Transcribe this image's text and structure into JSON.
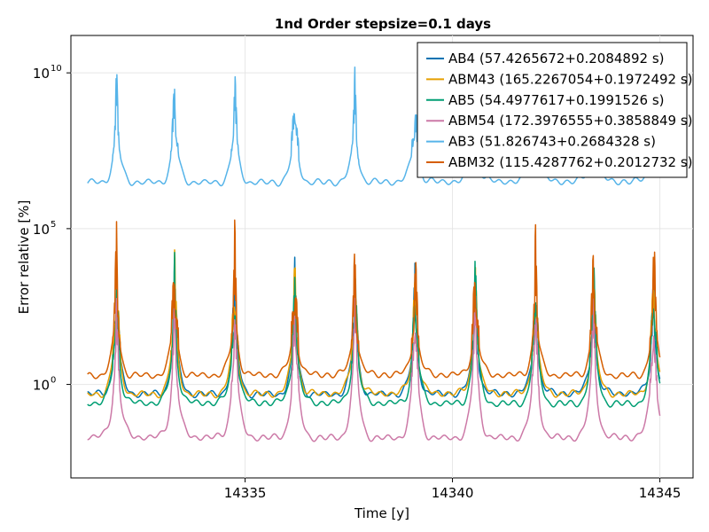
{
  "chart_data": {
    "type": "line",
    "title": "1nd Order stepsize=0.1 days",
    "xlabel": "Time [y]",
    "ylabel": "Error relative [%]",
    "xlim": [
      14330.8,
      14345.8
    ],
    "ylim_log10": [
      -3,
      11.2
    ],
    "y_scale": "log",
    "grid": true,
    "legend_position": "top-right",
    "x_ticks": [
      {
        "value": 14335,
        "label": "14335"
      },
      {
        "value": 14340,
        "label": "14340"
      },
      {
        "value": 14345,
        "label": "14345"
      }
    ],
    "y_ticks": [
      {
        "exponent": 10,
        "base": "10",
        "sup": "10"
      },
      {
        "exponent": 5,
        "base": "10",
        "sup": "5"
      },
      {
        "exponent": 0,
        "base": "10",
        "sup": "0"
      }
    ],
    "x_range": [
      14331.2,
      14345.0
    ],
    "peak_times": [
      14331.9,
      14333.3,
      14334.75,
      14336.2,
      14337.65,
      14339.1,
      14340.55,
      14342.0,
      14343.4,
      14344.85
    ],
    "series": [
      {
        "name": "AB4 (57.4265672+0.2084892 s)",
        "color": "#0072b2",
        "baseline_log10": -0.3,
        "peak_log10": 2.0,
        "spike_log10": 4.2
      },
      {
        "name": "ABM43 (165.2267054+0.1972492 s)",
        "color": "#e69f00",
        "baseline_log10": -0.3,
        "peak_log10": 2.2,
        "spike_log10": 4.5
      },
      {
        "name": "AB5 (54.4977617+0.1991526 s)",
        "color": "#009e73",
        "baseline_log10": -0.6,
        "peak_log10": 2.1,
        "spike_log10": 4.3
      },
      {
        "name": "ABM54 (172.3976555+0.3858849 s)",
        "color": "#cc79a7",
        "baseline_log10": -1.7,
        "peak_log10": 1.5,
        "spike_log10": 3.2
      },
      {
        "name": "AB3 (51.826743+0.2684328 s)",
        "color": "#56b4e9",
        "baseline_log10": 6.5,
        "peak_log10": 8.2,
        "spike_log10": 10.3
      },
      {
        "name": "ABM32 (115.4287762+0.2012732 s)",
        "color": "#d55e00",
        "baseline_log10": 0.3,
        "peak_log10": 2.4,
        "spike_log10": 5.4
      }
    ]
  }
}
